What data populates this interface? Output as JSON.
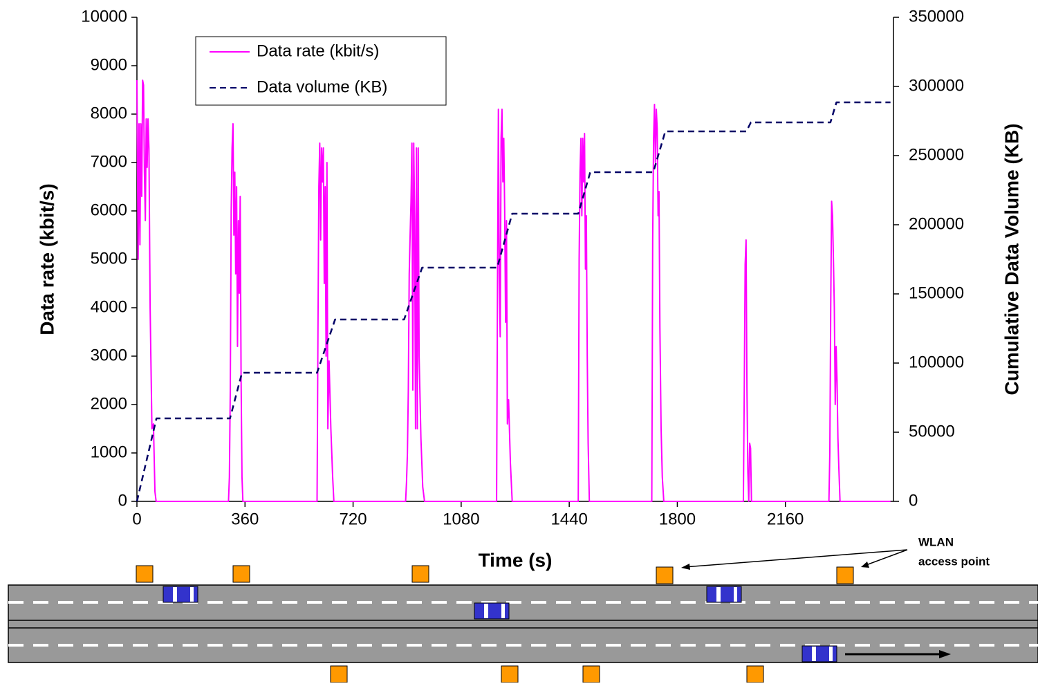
{
  "chart_data": {
    "type": "line",
    "xlabel": "Time (s)",
    "ylabel": "Data rate (kbit/s)",
    "y2label": "Cumulative Data Volume (KB)",
    "xlim": [
      0,
      2520
    ],
    "xticks": [
      0,
      360,
      720,
      1080,
      1440,
      1800,
      2160
    ],
    "ylim": [
      0,
      10000
    ],
    "yticks": [
      0,
      1000,
      2000,
      3000,
      4000,
      5000,
      6000,
      7000,
      8000,
      9000,
      10000
    ],
    "y2lim": [
      0,
      350000
    ],
    "y2ticks": [
      0,
      50000,
      100000,
      150000,
      200000,
      250000,
      300000,
      350000
    ],
    "legend": "upper left",
    "annotation": [
      "WLAN",
      "access point"
    ],
    "series": [
      {
        "name": "Data rate (kbit/s)",
        "color": "#ff00ff",
        "style": "solid",
        "x": [
          0,
          4,
          7,
          10,
          13,
          16,
          19,
          22,
          25,
          28,
          31,
          34,
          37,
          40,
          44,
          50,
          55,
          60,
          64,
          305,
          308,
          311,
          314,
          317,
          320,
          323,
          326,
          329,
          332,
          335,
          338,
          341,
          344,
          347,
          350,
          353,
          600,
          603,
          606,
          609,
          612,
          615,
          618,
          621,
          624,
          627,
          630,
          633,
          636,
          640,
          646,
          652,
          656,
          895,
          898,
          901,
          904,
          907,
          910,
          913,
          916,
          919,
          922,
          925,
          928,
          931,
          934,
          937,
          940,
          946,
          952,
          958,
          1198,
          1201,
          1204,
          1207,
          1210,
          1213,
          1216,
          1219,
          1222,
          1225,
          1228,
          1231,
          1234,
          1238,
          1244,
          1250,
          1470,
          1473,
          1476,
          1479,
          1482,
          1485,
          1488,
          1491,
          1494,
          1497,
          1500,
          1503,
          1507,
          1715,
          1718,
          1721,
          1724,
          1727,
          1730,
          1733,
          1736,
          1739,
          1742,
          1746,
          1750,
          1755,
          2020,
          2023,
          2026,
          2029,
          2032,
          2035,
          2038,
          2041,
          2044,
          2047,
          2305,
          2308,
          2311,
          2314,
          2317,
          2320,
          2323,
          2326,
          2329,
          2332,
          2335,
          2338,
          2342,
          2510
        ],
        "values": [
          8700,
          5000,
          7800,
          5300,
          7800,
          6300,
          8700,
          8600,
          6800,
          5800,
          7900,
          6900,
          7900,
          7300,
          4000,
          1500,
          1600,
          200,
          0,
          0,
          500,
          2300,
          6000,
          7300,
          7800,
          5500,
          6800,
          4700,
          6500,
          3200,
          5800,
          4300,
          6300,
          2500,
          500,
          0,
          0,
          3500,
          6500,
          7400,
          5400,
          7300,
          6600,
          7300,
          4500,
          6500,
          3000,
          7000,
          1500,
          2900,
          1500,
          500,
          0,
          0,
          400,
          1000,
          2300,
          4700,
          5500,
          6200,
          7400,
          2300,
          7400,
          5800,
          1500,
          7300,
          1500,
          7300,
          3000,
          1300,
          300,
          0,
          0,
          4400,
          8100,
          4700,
          3400,
          7500,
          8100,
          6600,
          7500,
          6000,
          3700,
          5800,
          1600,
          2100,
          800,
          0,
          0,
          5000,
          6800,
          7500,
          5900,
          7500,
          6600,
          7600,
          4800,
          5900,
          3000,
          1200,
          0,
          0,
          5400,
          7500,
          8200,
          7000,
          8100,
          7700,
          5900,
          6400,
          3600,
          1500,
          500,
          0,
          0,
          2300,
          4900,
          5400,
          2300,
          600,
          0,
          1200,
          1100,
          0,
          0,
          1000,
          4000,
          6200,
          5900,
          5000,
          4000,
          2000,
          3200,
          2500,
          1300,
          700,
          0,
          0
        ]
      },
      {
        "name": "Data volume (KB)",
        "color": "#000066",
        "style": "dashed",
        "axis": "y2",
        "x": [
          0,
          65,
          310,
          350,
          600,
          660,
          890,
          950,
          1200,
          1250,
          1470,
          1510,
          1720,
          1760,
          2030,
          2045,
          2310,
          2330,
          2510
        ],
        "values": [
          0,
          60000,
          60000,
          93000,
          93000,
          131500,
          131500,
          169000,
          169000,
          208000,
          208000,
          238000,
          238000,
          267500,
          267500,
          274000,
          274000,
          288500,
          288500
        ]
      }
    ]
  }
}
